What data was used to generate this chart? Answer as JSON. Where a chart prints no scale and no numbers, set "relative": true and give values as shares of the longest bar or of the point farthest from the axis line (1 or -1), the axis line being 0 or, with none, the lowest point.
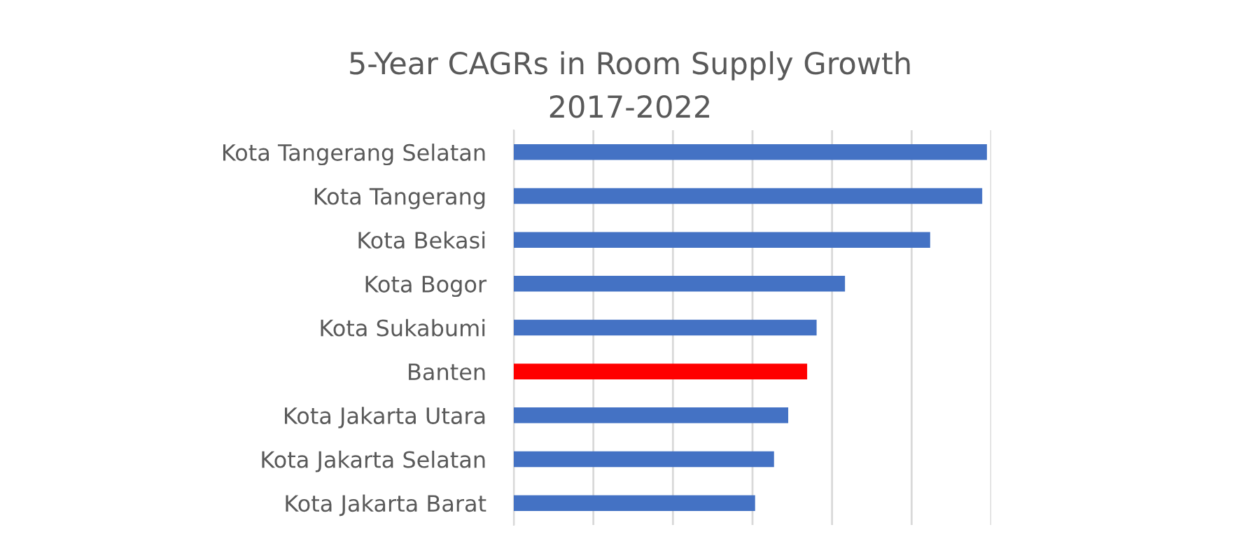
{
  "chart_data": {
    "type": "bar",
    "orientation": "horizontal",
    "relative": true,
    "title": "5-Year CAGRs in Room Supply Growth",
    "subtitle": "2017-2022",
    "categories": [
      "Kota Tangerang Selatan",
      "Kota Tangerang",
      "Kota Bekasi",
      "Kota Bogor",
      "Kota Sukabumi",
      "Banten",
      "Kota Jakarta Utara",
      "Kota Jakarta Selatan",
      "Kota Jakarta Barat"
    ],
    "values": [
      1,
      0.99,
      0.88,
      0.7,
      0.64,
      0.62,
      0.58,
      0.55,
      0.51
    ],
    "colors": [
      "#4472c4",
      "#4472c4",
      "#4472c4",
      "#4472c4",
      "#4472c4",
      "#ff0000",
      "#4472c4",
      "#4472c4",
      "#4472c4"
    ],
    "grid": "x",
    "legend": false
  }
}
